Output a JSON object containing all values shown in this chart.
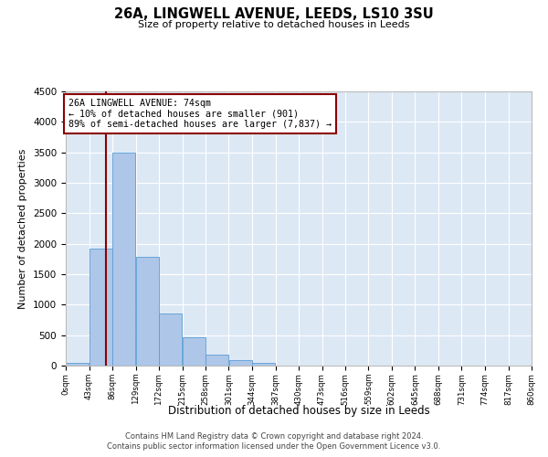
{
  "title": "26A, LINGWELL AVENUE, LEEDS, LS10 3SU",
  "subtitle": "Size of property relative to detached houses in Leeds",
  "xlabel": "Distribution of detached houses by size in Leeds",
  "ylabel": "Number of detached properties",
  "bin_edges": [
    0,
    43,
    86,
    129,
    172,
    215,
    258,
    301,
    344,
    387,
    430,
    473,
    516,
    559,
    602,
    645,
    688,
    731,
    774,
    817,
    860
  ],
  "bar_values": [
    50,
    1920,
    3500,
    1780,
    860,
    460,
    175,
    90,
    50,
    0,
    0,
    0,
    0,
    0,
    0,
    0,
    0,
    0,
    0,
    0
  ],
  "bar_color": "#aec6e8",
  "bar_edgecolor": "#5a9fd4",
  "property_line_x": 74,
  "property_line_color": "#8b0000",
  "annotation_text": "26A LINGWELL AVENUE: 74sqm\n← 10% of detached houses are smaller (901)\n89% of semi-detached houses are larger (7,837) →",
  "annotation_box_color": "#8b0000",
  "ylim": [
    0,
    4500
  ],
  "yticks": [
    0,
    500,
    1000,
    1500,
    2000,
    2500,
    3000,
    3500,
    4000,
    4500
  ],
  "tick_labels": [
    "0sqm",
    "43sqm",
    "86sqm",
    "129sqm",
    "172sqm",
    "215sqm",
    "258sqm",
    "301sqm",
    "344sqm",
    "387sqm",
    "430sqm",
    "473sqm",
    "516sqm",
    "559sqm",
    "602sqm",
    "645sqm",
    "688sqm",
    "731sqm",
    "774sqm",
    "817sqm",
    "860sqm"
  ],
  "footer_line1": "Contains HM Land Registry data © Crown copyright and database right 2024.",
  "footer_line2": "Contains public sector information licensed under the Open Government Licence v3.0.",
  "background_color": "#ffffff",
  "plot_bg_color": "#dde8f5"
}
